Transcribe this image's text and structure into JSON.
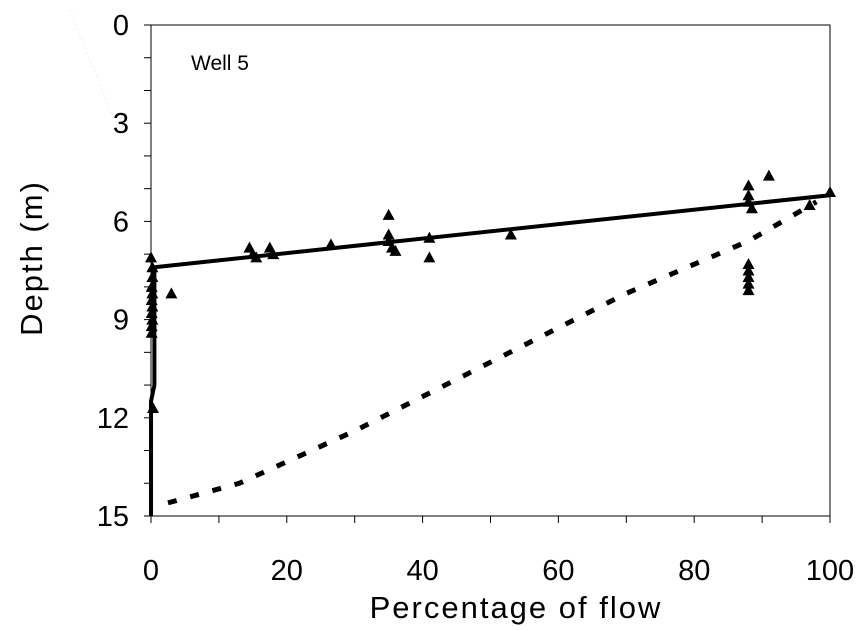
{
  "chart_data": {
    "type": "scatter",
    "title": "",
    "annotation": "Well 5",
    "xlabel": "Percentage of flow",
    "ylabel": "Depth   (m)",
    "xlim": [
      0,
      100
    ],
    "ylim": [
      0,
      15
    ],
    "y_inverted": true,
    "x_ticks": [
      "0",
      "20",
      "40",
      "60",
      "80",
      "100"
    ],
    "y_ticks": [
      "0",
      "3",
      "6",
      "9",
      "12",
      "15"
    ],
    "grid": false,
    "legend": "none",
    "series": [
      {
        "type": "markers",
        "marker": "triangle",
        "color": "#000000",
        "points": [
          [
            0,
            7.1
          ],
          [
            0.2,
            7.4
          ],
          [
            0.2,
            7.7
          ],
          [
            0.1,
            8.0
          ],
          [
            0.2,
            8.2
          ],
          [
            0.1,
            8.4
          ],
          [
            0.2,
            8.6
          ],
          [
            0.1,
            8.8
          ],
          [
            0.2,
            9.0
          ],
          [
            0.1,
            9.2
          ],
          [
            0.1,
            9.4
          ],
          [
            0.3,
            11.7
          ],
          [
            3,
            8.2
          ],
          [
            14.5,
            6.8
          ],
          [
            15,
            7.0
          ],
          [
            15.5,
            7.1
          ],
          [
            17.5,
            6.8
          ],
          [
            18,
            7.0
          ],
          [
            26.5,
            6.7
          ],
          [
            35,
            5.8
          ],
          [
            35,
            6.4
          ],
          [
            35,
            6.6
          ],
          [
            35.5,
            6.8
          ],
          [
            36,
            6.9
          ],
          [
            41,
            6.5
          ],
          [
            41,
            7.1
          ],
          [
            53,
            6.4
          ],
          [
            88,
            4.9
          ],
          [
            88,
            5.2
          ],
          [
            88,
            5.4
          ],
          [
            88.5,
            5.6
          ],
          [
            88,
            7.3
          ],
          [
            88,
            7.5
          ],
          [
            88,
            7.7
          ],
          [
            88,
            7.9
          ],
          [
            88,
            8.1
          ],
          [
            91,
            4.6
          ],
          [
            97,
            5.5
          ],
          [
            100,
            5.1
          ]
        ]
      },
      {
        "type": "line",
        "style": "solid",
        "color": "#000000",
        "points": [
          [
            0,
            15
          ],
          [
            0,
            11.5
          ],
          [
            0.5,
            11.0
          ],
          [
            0.5,
            7.4
          ],
          [
            100,
            5.2
          ]
        ]
      },
      {
        "type": "line",
        "style": "dotted",
        "color": "#000000",
        "points": [
          [
            2.5,
            14.6
          ],
          [
            13,
            14.0
          ],
          [
            30,
            12.4
          ],
          [
            50,
            10.3
          ],
          [
            70,
            8.2
          ],
          [
            88,
            6.6
          ],
          [
            98,
            5.4
          ]
        ]
      }
    ]
  }
}
